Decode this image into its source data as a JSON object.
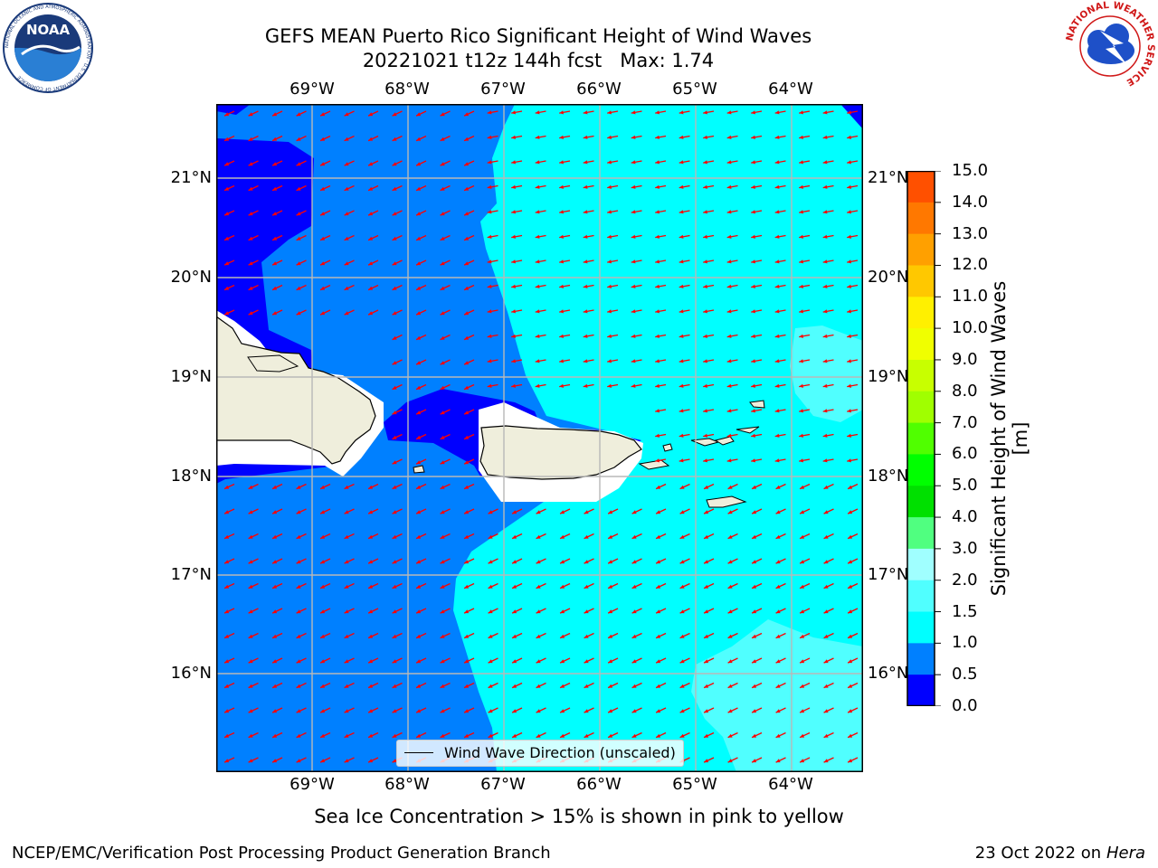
{
  "header": {
    "title_line1": "GEFS MEAN Puerto Rico Significant Height of Wind Waves",
    "title_line2": "20221021 t12z 144h fcst   Max: 1.74"
  },
  "logos": {
    "left": {
      "name": "noaa-logo",
      "text": "NOAA",
      "ring_text": "NATIONAL OCEANIC AND ATMOSPHERIC ADMINISTRATION · U.S. DEPARTMENT OF COMMERCE"
    },
    "right": {
      "name": "nws-logo",
      "ring_text": "NATIONAL WEATHER SERVICE"
    }
  },
  "map": {
    "lon_ticks": [
      "69°W",
      "68°W",
      "67°W",
      "66°W",
      "65°W",
      "64°W"
    ],
    "lat_ticks": [
      "21°N",
      "20°N",
      "19°N",
      "18°N",
      "17°N",
      "16°N"
    ],
    "extent": {
      "lon_min": -70.0,
      "lon_max": -63.25,
      "lat_min": 15.0,
      "lat_max": 21.75
    },
    "land_color": "#efeedc",
    "grid_color": "#b8b8b8",
    "arrow_color": "#ff0000",
    "wave_direction": "toward west-southwest"
  },
  "legend": {
    "label": "Wind Wave Direction (unscaled)"
  },
  "colorbar": {
    "label": "Significant Height of Wind Waves [m]",
    "ticks": [
      "15.0",
      "14.0",
      "13.0",
      "12.0",
      "11.0",
      "10.0",
      "9.0",
      "8.0",
      "7.0",
      "6.0",
      "5.0",
      "4.0",
      "3.0",
      "2.0",
      "1.5",
      "1.0",
      "0.5",
      "0.0"
    ],
    "colors": [
      "#ff0000",
      "#ff2800",
      "#ff5000",
      "#ff7800",
      "#ffa000",
      "#ffc800",
      "#fff000",
      "#f0ff00",
      "#c8ff00",
      "#a0ff00",
      "#50ff00",
      "#00ff00",
      "#00e000",
      "#50ff80",
      "#a0ffff",
      "#50ffff",
      "#00ffff",
      "#0080ff",
      "#0000ff"
    ]
  },
  "chart_data": {
    "type": "heatmap",
    "title": "GEFS MEAN Puerto Rico Significant Height of Wind Waves",
    "subtitle": "20221021 t12z 144h fcst   Max: 1.74",
    "max_value": 1.74,
    "colorbar_bounds": [
      0.0,
      0.5,
      1.0,
      1.5,
      2.0,
      3.0,
      4.0,
      5.0,
      6.0,
      7.0,
      8.0,
      9.0,
      10.0,
      11.0,
      12.0,
      13.0,
      14.0,
      15.0
    ],
    "colorbar_label": "Significant Height of Wind Waves [m]",
    "regions": [
      {
        "area": "north and west of Hispaniola coast / Mona Passage",
        "range": [
          0.0,
          0.5
        ]
      },
      {
        "area": "western and south-western waters",
        "range": [
          0.5,
          1.0
        ]
      },
      {
        "area": "east of 67°W and east of Puerto Rico",
        "range": [
          1.0,
          1.5
        ]
      },
      {
        "area": "patches near 64°W 19°N and 64.5°W 16°N",
        "range": [
          1.5,
          2.0
        ]
      }
    ]
  },
  "footer": {
    "note": "Sea Ice Concentration > 15% is shown in pink to yellow",
    "left": "NCEP/EMC/Verification Post Processing Product Generation Branch",
    "date": "23 Oct 2022 on",
    "host": "Hera"
  }
}
